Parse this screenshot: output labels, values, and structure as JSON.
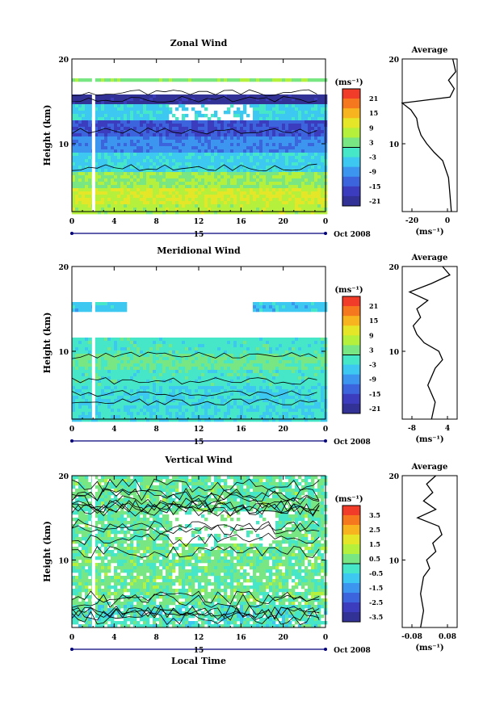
{
  "panels": [
    {
      "title": "Zonal Wind",
      "ylabel": "Height (km)",
      "xticks": [
        "0",
        "4",
        "8",
        "12",
        "16",
        "20",
        "0"
      ],
      "yticks": [
        "20",
        "10"
      ],
      "day_label": "15",
      "date_label": "Oct 2008",
      "unit_label": "(ms⁻¹)",
      "colorbar_ticks": [
        "21",
        "15",
        "9",
        "3",
        "-3",
        "-9",
        "-15",
        "-21"
      ],
      "avg_title": "Average",
      "avg_xticks": [
        "-20",
        "0"
      ],
      "avg_yticks": [
        "20",
        "10"
      ],
      "avg_unit": "(ms⁻¹)"
    },
    {
      "title": "Meridional Wind",
      "ylabel": "Height (km)",
      "xticks": [
        "0",
        "4",
        "8",
        "12",
        "16",
        "20",
        "0"
      ],
      "yticks": [
        "20",
        "10"
      ],
      "day_label": "15",
      "date_label": "Oct 2008",
      "unit_label": "(ms⁻¹)",
      "colorbar_ticks": [
        "21",
        "15",
        "9",
        "3",
        "-3",
        "-9",
        "-15",
        "-21"
      ],
      "avg_title": "Average",
      "avg_xticks": [
        "-8",
        "4"
      ],
      "avg_yticks": [
        "20",
        "10"
      ],
      "avg_unit": "(ms⁻¹)"
    },
    {
      "title": "Vertical Wind",
      "ylabel": "Height (km)",
      "xticks": [
        "0",
        "4",
        "8",
        "12",
        "16",
        "20",
        "0"
      ],
      "yticks": [
        "20",
        "10"
      ],
      "day_label": "15",
      "date_label": "Oct 2008",
      "unit_label": "(ms⁻¹)",
      "colorbar_ticks": [
        "3.5",
        "2.5",
        "1.5",
        "0.5",
        "-0.5",
        "-1.5",
        "-2.5",
        "-3.5"
      ],
      "avg_title": "Average",
      "avg_xticks": [
        "-0.08",
        "0.08"
      ],
      "avg_yticks": [
        "20",
        "10"
      ],
      "avg_unit": "(ms⁻¹)"
    }
  ],
  "xlabel": "Local Time",
  "colors": {
    "colorbar": [
      "#f03c28",
      "#f5781e",
      "#f7b41e",
      "#e6e628",
      "#b4f03c",
      "#78e682",
      "#46e6c8",
      "#3cc8f0",
      "#3c96f0",
      "#3c64dc",
      "#3c3cbe",
      "#323296"
    ]
  },
  "chart_data": [
    {
      "type": "heatmap",
      "title": "Zonal Wind",
      "x_label": "Local Time",
      "y_label": "Height (km)",
      "xlim": [
        0,
        24
      ],
      "ylim": [
        2,
        20
      ],
      "color_range": [
        -24,
        24
      ],
      "layers": [
        {
          "height_km": [
            2,
            3
          ],
          "value_ms": 6
        },
        {
          "height_km": [
            3,
            5
          ],
          "value_ms": 8
        },
        {
          "height_km": [
            5,
            7
          ],
          "value_ms": 4
        },
        {
          "height_km": [
            7,
            9
          ],
          "value_ms": -5
        },
        {
          "height_km": [
            9,
            11
          ],
          "value_ms": -11
        },
        {
          "height_km": [
            11,
            13
          ],
          "value_ms": -16
        },
        {
          "height_km": [
            13,
            15
          ],
          "value_ms": -5
        },
        {
          "height_km": [
            15,
            16
          ],
          "value_ms": -22
        },
        {
          "height_km": [
            17.5,
            18
          ],
          "value_ms": 3
        }
      ],
      "average_profile": {
        "height_km": [
          2,
          4,
          6,
          8,
          9,
          10,
          11,
          12,
          13,
          14,
          14.8,
          15.5,
          16.5,
          17.5,
          18.5,
          20
        ],
        "value_ms": [
          4,
          3,
          2,
          -2,
          -8,
          -13,
          -17,
          -19,
          -20,
          -24,
          -30,
          3,
          6,
          2,
          7,
          5
        ],
        "xlim": [
          -30,
          8
        ]
      }
    },
    {
      "type": "heatmap",
      "title": "Meridional Wind",
      "x_label": "Local Time",
      "y_label": "Height (km)",
      "xlim": [
        0,
        24
      ],
      "ylim": [
        2,
        20
      ],
      "color_range": [
        -24,
        24
      ],
      "layers": [
        {
          "height_km": [
            2,
            6
          ],
          "value_ms": -4
        },
        {
          "height_km": [
            6,
            8
          ],
          "value_ms": -2
        },
        {
          "height_km": [
            8,
            10
          ],
          "value_ms": 1
        },
        {
          "height_km": [
            10,
            12
          ],
          "value_ms": -2
        },
        {
          "height_km": [
            15,
            16
          ],
          "value_ms": -6
        }
      ],
      "average_profile": {
        "height_km": [
          2,
          4,
          6,
          8,
          9,
          10,
          11,
          12,
          13,
          14,
          15,
          16,
          17,
          18,
          19,
          20
        ],
        "value_ms": [
          -2,
          -1,
          -3,
          -1,
          1,
          0,
          -4,
          -6,
          -7,
          -5,
          -6,
          -3,
          -8,
          -2,
          3,
          1
        ],
        "xlim": [
          -10,
          5
        ]
      }
    },
    {
      "type": "heatmap",
      "title": "Vertical Wind",
      "x_label": "Local Time",
      "y_label": "Height (km)",
      "xlim": [
        0,
        24
      ],
      "ylim": [
        2,
        20
      ],
      "color_range": [
        -4,
        4
      ],
      "layers": [
        {
          "height_km": [
            2,
            5
          ],
          "value_ms": -0.3
        },
        {
          "height_km": [
            5,
            12
          ],
          "value_ms": 0.2
        },
        {
          "height_km": [
            12,
            20
          ],
          "value_ms": 0.1
        }
      ],
      "average_profile": {
        "height_km": [
          2,
          4,
          6,
          8,
          9,
          10,
          11,
          12,
          13,
          14,
          15,
          16,
          17,
          18,
          19,
          20
        ],
        "value_ms": [
          -0.03,
          -0.02,
          -0.03,
          -0.02,
          0.0,
          -0.01,
          0.02,
          0.01,
          0.04,
          0.03,
          -0.04,
          0.02,
          -0.02,
          0.01,
          -0.01,
          0.02
        ],
        "xlim": [
          -0.09,
          0.09
        ]
      }
    }
  ]
}
